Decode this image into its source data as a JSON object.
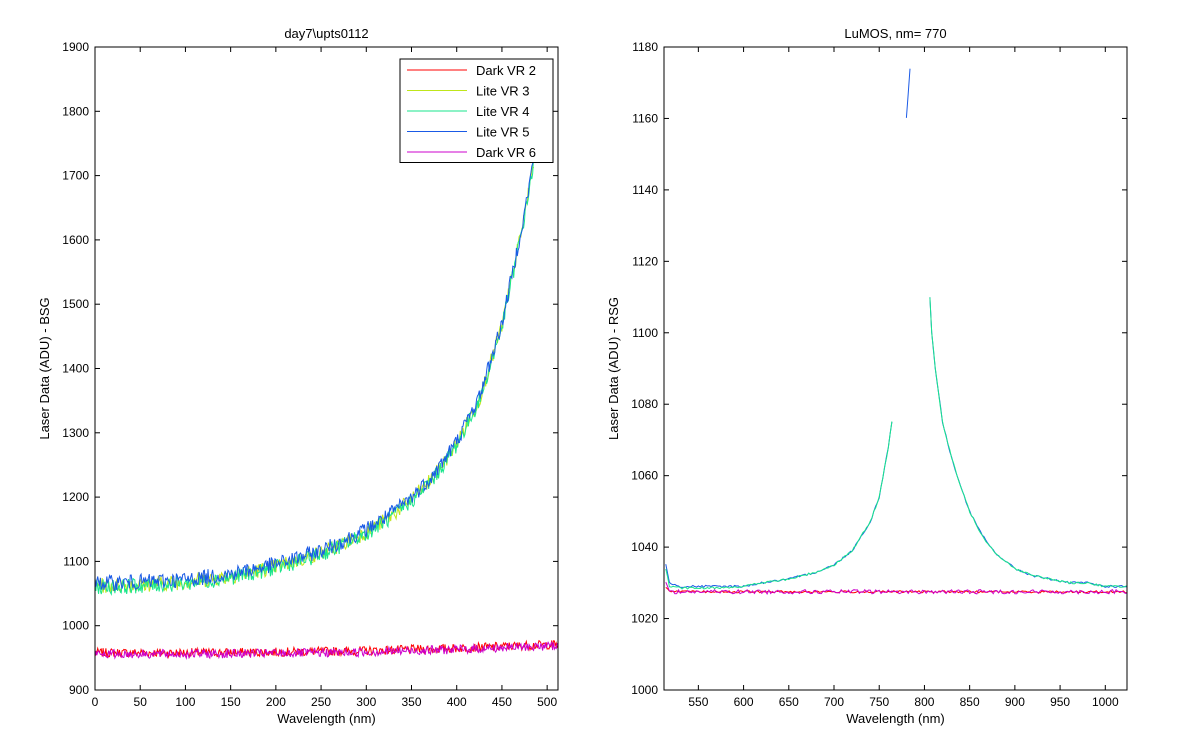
{
  "chart_data": [
    {
      "type": "line",
      "title": "day7\\upts0112",
      "xlabel": "Wavelength (nm)",
      "ylabel": "Laser Data (ADU) - BSG",
      "xlim": [
        0,
        512
      ],
      "ylim": [
        900,
        1900
      ],
      "xticks": [
        0,
        50,
        100,
        150,
        200,
        250,
        300,
        350,
        400,
        450,
        500
      ],
      "yticks": [
        900,
        1000,
        1100,
        1200,
        1300,
        1400,
        1500,
        1600,
        1700,
        1800,
        1900
      ],
      "legend_position": "top-right",
      "series": [
        {
          "name": "Dark VR 2",
          "color": "#ff0000",
          "x": [
            0,
            100,
            200,
            300,
            400,
            512
          ],
          "y": [
            958,
            958,
            959,
            961,
            965,
            971
          ]
        },
        {
          "name": "Lite VR 3",
          "color": "#bfe61a",
          "x": [
            0,
            25,
            50,
            75,
            100,
            125,
            150,
            175,
            200,
            225,
            250,
            275,
            300,
            325,
            350,
            375,
            400,
            425,
            450,
            465,
            475,
            485
          ],
          "y": [
            1062,
            1063,
            1064,
            1066,
            1068,
            1072,
            1077,
            1084,
            1092,
            1102,
            1113,
            1128,
            1146,
            1168,
            1196,
            1232,
            1283,
            1352,
            1466,
            1568,
            1638,
            1722
          ]
        },
        {
          "name": "Lite VR 4",
          "color": "#1ae68c",
          "x": [
            0,
            25,
            50,
            75,
            100,
            125,
            150,
            175,
            200,
            225,
            250,
            275,
            300,
            325,
            350,
            375,
            400,
            425,
            450,
            465,
            475,
            485
          ],
          "y": [
            1060,
            1061,
            1062,
            1064,
            1066,
            1070,
            1075,
            1082,
            1090,
            1100,
            1111,
            1126,
            1144,
            1166,
            1194,
            1230,
            1281,
            1350,
            1464,
            1566,
            1636,
            1720
          ]
        },
        {
          "name": "Lite VR 5",
          "color": "#1a5ae6",
          "x": [
            0,
            25,
            50,
            75,
            100,
            125,
            150,
            175,
            200,
            225,
            250,
            275,
            300,
            325,
            350,
            375,
            400,
            425,
            450,
            465,
            475,
            485
          ],
          "y": [
            1066,
            1067,
            1068,
            1070,
            1072,
            1076,
            1081,
            1088,
            1096,
            1106,
            1117,
            1132,
            1150,
            1172,
            1200,
            1236,
            1287,
            1356,
            1470,
            1572,
            1642,
            1726
          ]
        },
        {
          "name": "Dark VR 6",
          "color": "#cc00cc",
          "x": [
            0,
            100,
            200,
            300,
            400,
            512
          ],
          "y": [
            956,
            956,
            957,
            959,
            963,
            969
          ]
        }
      ]
    },
    {
      "type": "line",
      "title": "LuMOS, nm= 770",
      "xlabel": "Wavelength (nm)",
      "ylabel": "Laser Data (ADU) - RSG",
      "xlim": [
        512,
        1024
      ],
      "ylim": [
        1000,
        1180
      ],
      "xticks": [
        550,
        600,
        650,
        700,
        750,
        800,
        850,
        900,
        950,
        1000
      ],
      "yticks": [
        1000,
        1020,
        1040,
        1060,
        1080,
        1100,
        1120,
        1140,
        1160,
        1180
      ],
      "series": [
        {
          "color": "#1a5ae6",
          "segments": [
            {
              "x": [
                514,
                518,
                530,
                560,
                600,
                620,
                650,
                680,
                700,
                720,
                740,
                750,
                760,
                765
              ],
              "y": [
                1035,
                1030,
                1029,
                1029,
                1029,
                1030,
                1031,
                1033,
                1035,
                1039,
                1047,
                1054,
                1068,
                1077
              ]
            },
            {
              "x": [
                780,
                782,
                784
              ],
              "y": [
                1160,
                1167,
                1174
              ]
            },
            {
              "x": [
                806,
                808,
                812,
                820,
                830,
                840,
                850,
                860,
                870,
                880,
                890,
                900,
                920,
                940,
                960,
                980,
                1000,
                1024
              ],
              "y": [
                1110,
                1100,
                1090,
                1075,
                1065,
                1057,
                1050,
                1045,
                1041,
                1038,
                1036,
                1034,
                1032,
                1031,
                1030,
                1030,
                1029,
                1029
              ]
            }
          ]
        },
        {
          "color": "#1ae68c",
          "segments": [
            {
              "x": [
                514,
                518,
                530,
                560,
                600,
                620,
                650,
                680,
                700,
                720,
                740,
                750,
                760,
                765
              ],
              "y": [
                1034,
                1029,
                1028.5,
                1028.5,
                1029,
                1030,
                1031,
                1033,
                1035,
                1039,
                1047,
                1054,
                1068,
                1077
              ]
            },
            {
              "x": [
                806,
                808,
                812,
                820,
                830,
                840,
                850,
                860,
                870,
                880,
                890,
                900,
                920,
                940,
                960,
                980,
                1000,
                1024
              ],
              "y": [
                1110,
                1100,
                1090,
                1075,
                1065,
                1057,
                1050,
                1045,
                1041,
                1038,
                1036,
                1034,
                1032,
                1031,
                1030,
                1030,
                1029,
                1029
              ]
            }
          ]
        },
        {
          "color": "#ff0000",
          "segments": [
            {
              "x": [
                514,
                518,
                600,
                800,
                1024
              ],
              "y": [
                1029,
                1027.5,
                1027.5,
                1027.5,
                1027.5
              ]
            }
          ]
        },
        {
          "color": "#cc00cc",
          "segments": [
            {
              "x": [
                514,
                518,
                600,
                800,
                1024
              ],
              "y": [
                1030,
                1027.5,
                1027.5,
                1027.5,
                1027.5
              ]
            }
          ]
        }
      ]
    }
  ]
}
